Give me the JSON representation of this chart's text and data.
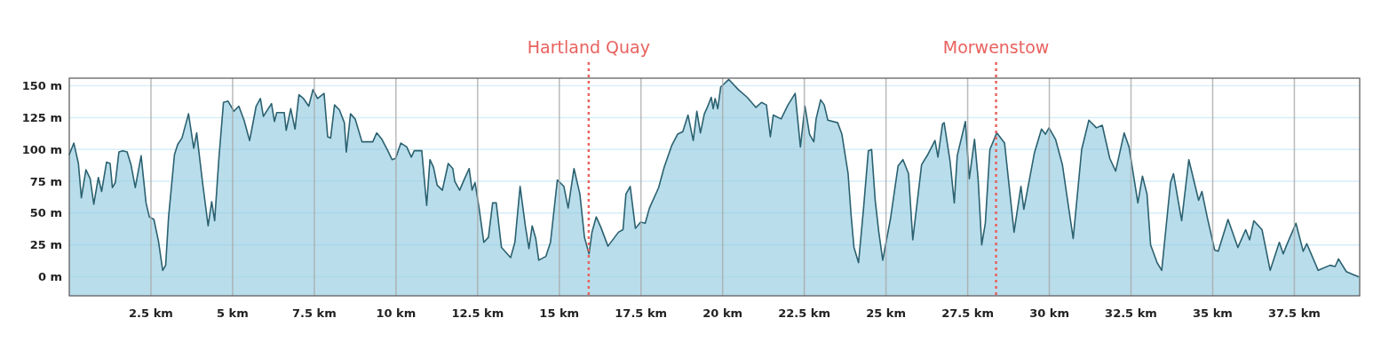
{
  "chart_data": {
    "type": "area",
    "x": [
      0,
      0.14,
      0.28,
      0.37,
      0.51,
      0.64,
      0.75,
      0.89,
      0.99,
      1.14,
      1.25,
      1.32,
      1.41,
      1.52,
      1.64,
      1.77,
      1.89,
      2.02,
      2.2,
      2.35,
      2.45,
      2.59,
      2.73,
      2.86,
      2.95,
      3.04,
      3.22,
      3.32,
      3.45,
      3.65,
      3.81,
      3.9,
      4.08,
      4.25,
      4.36,
      4.45,
      4.58,
      4.72,
      4.86,
      5.04,
      5.19,
      5.35,
      5.52,
      5.61,
      5.72,
      5.85,
      5.94,
      6.19,
      6.28,
      6.35,
      6.58,
      6.64,
      6.78,
      6.91,
      7.03,
      7.17,
      7.33,
      7.46,
      7.6,
      7.8,
      7.91,
      8,
      8.12,
      8.27,
      8.42,
      8.48,
      8.61,
      8.75,
      8.96,
      9.16,
      9.29,
      9.41,
      9.57,
      9.75,
      9.88,
      9.99,
      10.15,
      10.33,
      10.47,
      10.56,
      10.79,
      10.94,
      11.04,
      11.15,
      11.26,
      11.42,
      11.6,
      11.74,
      11.8,
      11.95,
      12.1,
      12.24,
      12.33,
      12.42,
      12.55,
      12.69,
      12.83,
      12.96,
      13.07,
      13.23,
      13.51,
      13.64,
      13.8,
      13.96,
      14.07,
      14.17,
      14.28,
      14.37,
      14.59,
      14.73,
      14.94,
      15.14,
      15.27,
      15.45,
      15.63,
      15.77,
      15.91,
      16,
      16.13,
      16.27,
      16.49,
      16.81,
      16.95,
      17.04,
      17.17,
      17.33,
      17.49,
      17.63,
      17.76,
      18.04,
      18.21,
      18.44,
      18.62,
      18.78,
      18.94,
      19.1,
      19.21,
      19.32,
      19.44,
      19.53,
      19.65,
      19.71,
      19.77,
      19.85,
      19.94,
      20.19,
      20.48,
      20.75,
      21.02,
      21.19,
      21.34,
      21.46,
      21.55,
      21.79,
      22,
      22.22,
      22.38,
      22.52,
      22.66,
      22.79,
      22.86,
      23,
      23.11,
      23.22,
      23.52,
      23.65,
      23.84,
      23.93,
      24.02,
      24.16,
      24.31,
      24.46,
      24.56,
      24.67,
      24.78,
      24.9,
      25.14,
      25.37,
      25.52,
      25.69,
      25.82,
      26.09,
      26.28,
      26.5,
      26.59,
      26.73,
      26.78,
      26.96,
      27.09,
      27.18,
      27.43,
      27.55,
      27.71,
      27.82,
      27.93,
      28.04,
      28.18,
      28.39,
      28.63,
      28.92,
      29.13,
      29.22,
      29.54,
      29.76,
      29.88,
      29.99,
      30.19,
      30.4,
      30.53,
      30.73,
      30.99,
      31.21,
      31.44,
      31.62,
      31.85,
      32.03,
      32.29,
      32.44,
      32.71,
      32.85,
      32.99,
      33.1,
      33.3,
      33.44,
      33.71,
      33.8,
      34.05,
      34.27,
      34.57,
      34.67,
      34.84,
      35.06,
      35.17,
      35.47,
      35.77,
      36.01,
      36.13,
      36.26,
      36.51,
      36.76,
      37.04,
      37.16,
      37.25,
      37.55,
      37.77,
      37.88,
      38.23,
      38.59,
      38.75,
      38.85,
      39.09,
      39.46
    ],
    "series": [
      {
        "color": "#2b6170",
        "values": [
          96,
          105,
          89,
          62,
          84,
          77,
          57,
          78,
          67,
          90,
          89,
          70,
          74,
          98,
          99,
          98,
          88,
          70,
          95,
          58,
          47,
          45,
          28,
          5,
          9,
          47,
          96,
          104,
          109,
          128,
          101,
          113,
          74,
          40,
          59,
          44,
          93,
          137,
          138,
          130,
          134,
          123,
          107,
          119,
          134,
          140,
          126,
          136,
          122,
          129,
          129,
          115,
          132,
          116,
          143,
          140,
          134,
          147,
          140,
          144,
          110,
          109,
          135,
          131,
          121,
          98,
          128,
          124,
          106,
          106,
          106,
          113,
          108,
          99,
          92,
          93,
          105,
          102,
          94,
          99,
          99,
          56,
          92,
          86,
          72,
          68,
          89,
          85,
          75,
          68,
          77,
          85,
          68,
          74,
          53,
          27,
          31,
          58,
          58,
          23,
          15,
          27,
          71,
          40,
          22,
          40,
          30,
          13,
          16,
          27,
          76,
          71,
          54,
          85,
          65,
          31,
          18,
          35,
          47,
          39,
          24,
          35,
          37,
          65,
          71,
          38,
          43,
          42,
          54,
          70,
          86,
          103,
          112,
          114,
          127,
          107,
          130,
          113,
          128,
          133,
          141,
          132,
          140,
          132,
          149,
          155,
          147,
          141,
          133,
          137,
          135,
          110,
          127,
          124,
          135,
          144,
          102,
          134,
          112,
          106,
          124,
          139,
          135,
          123,
          121,
          112,
          81,
          49,
          23,
          11,
          53,
          99,
          100,
          60,
          35,
          13,
          46,
          87,
          92,
          81,
          29,
          88,
          96,
          107,
          94,
          120,
          121,
          91,
          58,
          95,
          122,
          77,
          108,
          77,
          25,
          42,
          100,
          113,
          105,
          35,
          71,
          53,
          97,
          116,
          112,
          117,
          108,
          88,
          65,
          30,
          100,
          123,
          117,
          119,
          93,
          83,
          113,
          102,
          58,
          79,
          65,
          25,
          11,
          5,
          74,
          81,
          44,
          92,
          60,
          67,
          46,
          21,
          20,
          45,
          23,
          37,
          29,
          44,
          37,
          5,
          27,
          18,
          24,
          42,
          20,
          26,
          5,
          9,
          8,
          14,
          4,
          0
        ]
      }
    ],
    "xlim": [
      0,
      39.5
    ],
    "ylim": [
      -15,
      156
    ],
    "xticks": [
      {
        "value": 2.5,
        "label": "2.5 km"
      },
      {
        "value": 5,
        "label": "5 km"
      },
      {
        "value": 7.5,
        "label": "7.5 km"
      },
      {
        "value": 10,
        "label": "10 km"
      },
      {
        "value": 12.5,
        "label": "12.5 km"
      },
      {
        "value": 15,
        "label": "15 km"
      },
      {
        "value": 17.5,
        "label": "17.5 km"
      },
      {
        "value": 20,
        "label": "20 km"
      },
      {
        "value": 22.5,
        "label": "22.5 km"
      },
      {
        "value": 25,
        "label": "25 km"
      },
      {
        "value": 27.5,
        "label": "27.5 km"
      },
      {
        "value": 30,
        "label": "30 km"
      },
      {
        "value": 32.5,
        "label": "32.5 km"
      },
      {
        "value": 35,
        "label": "35 km"
      },
      {
        "value": 37.5,
        "label": "37.5 km"
      }
    ],
    "yticks": [
      {
        "value": 0,
        "label": "0 m"
      },
      {
        "value": 25,
        "label": "25 m"
      },
      {
        "value": 50,
        "label": "50 m"
      },
      {
        "value": 75,
        "label": "75 m"
      },
      {
        "value": 100,
        "label": "100 m"
      },
      {
        "value": 125,
        "label": "125 m"
      },
      {
        "value": 150,
        "label": "150 m"
      }
    ],
    "grid": true,
    "ref_lines": [
      {
        "axis": "x",
        "value": 15.9,
        "label": "Hartland Quay",
        "color": "#e8625f",
        "line_style": "dotted"
      },
      {
        "axis": "x",
        "value": 28.37,
        "label": "Morwenstow",
        "color": "#e8625f",
        "line_style": "dotted"
      }
    ]
  }
}
